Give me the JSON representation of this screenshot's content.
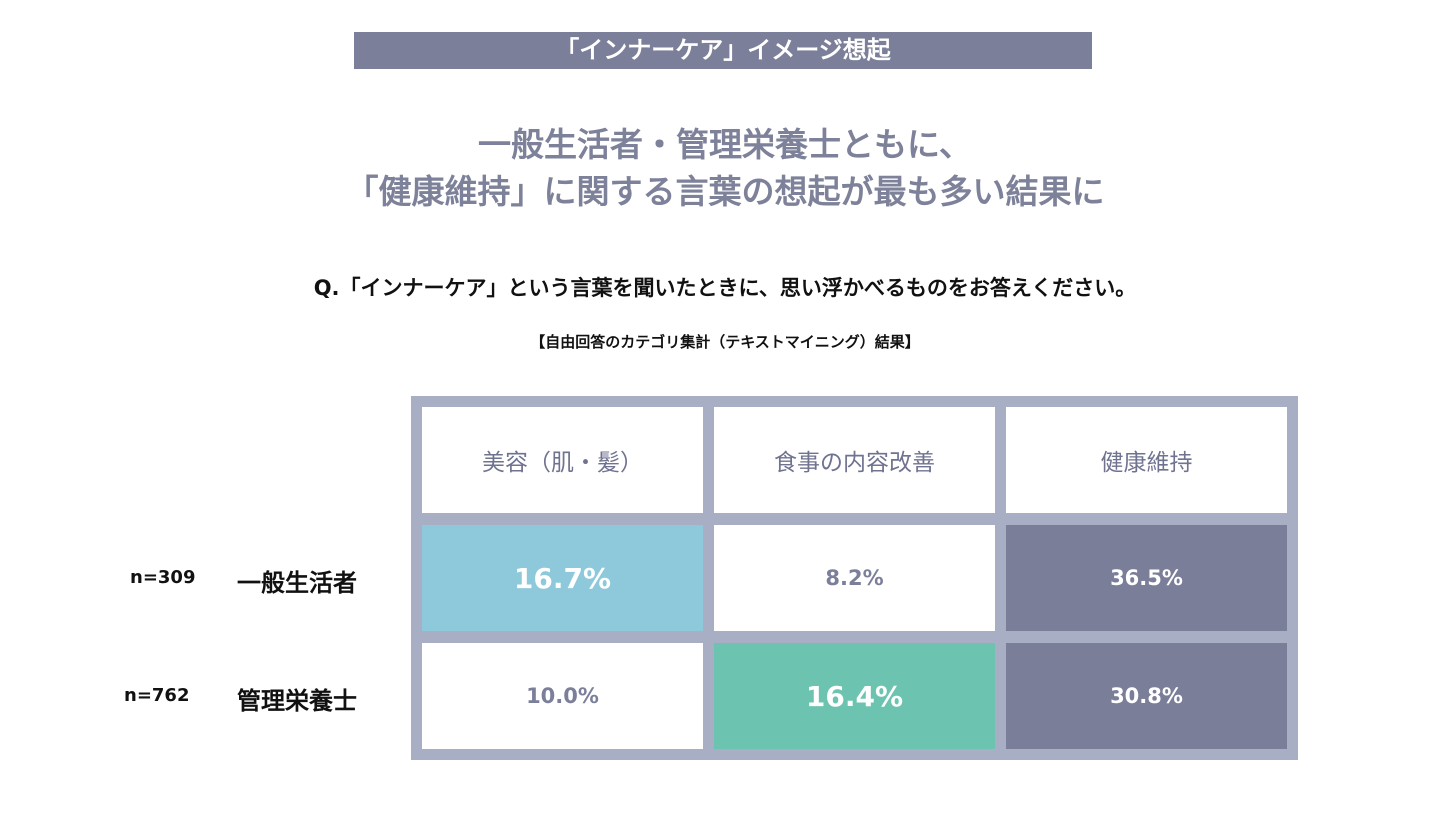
{
  "banner": "「インナーケア」イメージ想起",
  "headline": [
    "一般生活者・管理栄養士ともに、",
    "「健康維持」に関する言葉の想起が最も多い結果に"
  ],
  "question": "Q.「インナーケア」という言葉を聞いたときに、思い浮かべるものをお答えください。",
  "note": "【自由回答のカテゴリ集計（テキストマイニング）結果】",
  "colors": {
    "banner": "#7b7f99",
    "grid": "#a8aec3",
    "beauty_highlight": "#8ec8db",
    "meal_highlight": "#6cc4b0",
    "health_highlight": "#7b7e99"
  },
  "chart_data": {
    "type": "table",
    "columns": [
      "美容（肌・髪）",
      "食事の内容改善",
      "健康維持"
    ],
    "rows": [
      {
        "n": "n=309",
        "label": "一般生活者",
        "values": [
          "16.7%",
          "8.2%",
          "36.5%"
        ]
      },
      {
        "n": "n=762",
        "label": "管理栄養士",
        "values": [
          "10.0%",
          "16.4%",
          "30.8%"
        ]
      }
    ]
  }
}
